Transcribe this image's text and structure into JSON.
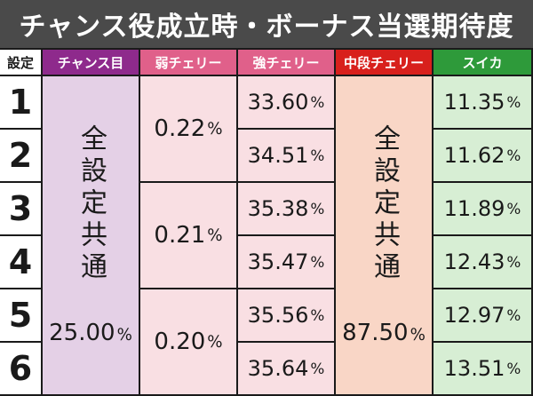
{
  "title": "チャンス役成立時・ボーナス当選期待度",
  "headers": {
    "setting": "設定",
    "chance": "チャンス目",
    "weak_cherry": "弱チェリー",
    "strong_cherry": "強チェリー",
    "mid_cherry": "中段チェリー",
    "suika": "スイカ"
  },
  "settings": [
    "1",
    "2",
    "3",
    "4",
    "5",
    "6"
  ],
  "chance": {
    "note": "全設定共通",
    "value": "25.00"
  },
  "weak_cherry": [
    "0.22",
    "0.21",
    "0.20"
  ],
  "strong_cherry": [
    "33.60",
    "34.51",
    "35.38",
    "35.47",
    "35.56",
    "35.64"
  ],
  "mid_cherry": {
    "note": "全設定共通",
    "value": "87.50"
  },
  "suika": [
    "11.35",
    "11.62",
    "11.89",
    "12.43",
    "12.97",
    "13.51"
  ],
  "percent_sign": "%"
}
